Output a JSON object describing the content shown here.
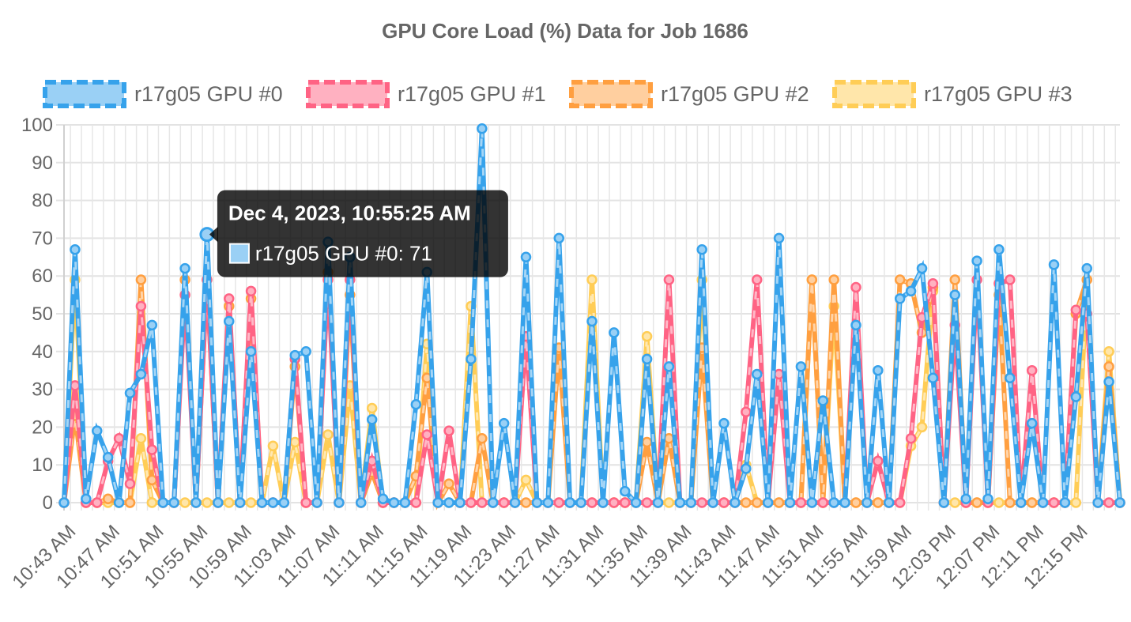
{
  "chart_data": {
    "type": "line",
    "title": "GPU Core Load (%) Data for Job 1686",
    "ylim": [
      0,
      100
    ],
    "yticks": [
      "0",
      "10",
      "20",
      "30",
      "40",
      "50",
      "60",
      "70",
      "80",
      "90",
      "100"
    ],
    "x_tick_labels": [
      "10:43 AM",
      "10:47 AM",
      "10:51 AM",
      "10:55 AM",
      "10:59 AM",
      "11:03 AM",
      "11:07 AM",
      "11:11 AM",
      "11:15 AM",
      "11:19 AM",
      "11:23 AM",
      "11:27 AM",
      "11:31 AM",
      "11:35 AM",
      "11:39 AM",
      "11:43 AM",
      "11:47 AM",
      "11:51 AM",
      "11:55 AM",
      "11:59 AM",
      "12:03 PM",
      "12:07 PM",
      "12:11 PM",
      "12:15 PM"
    ],
    "x_start": "10:42:25 AM",
    "x_end": "12:19:25 PM",
    "sample_interval_seconds": 60,
    "grid": true,
    "legend_position": "top",
    "series": [
      {
        "name": "r17g05 GPU #0",
        "color": "#36a2eb",
        "fill": "#9ad0f5",
        "values": [
          0,
          67,
          1,
          19,
          12,
          0,
          29,
          34,
          47,
          0,
          0,
          62,
          0,
          71,
          0,
          48,
          0,
          40,
          0,
          0,
          0,
          39,
          40,
          0,
          69,
          0,
          65,
          0,
          22,
          1,
          0,
          0,
          26,
          61,
          0,
          0,
          0,
          38,
          99,
          0,
          21,
          0,
          65,
          0,
          0,
          70,
          0,
          0,
          48,
          0,
          45,
          3,
          0,
          38,
          0,
          36,
          0,
          0,
          67,
          0,
          21,
          0,
          9,
          34,
          0,
          70,
          0,
          36,
          0,
          27,
          0,
          0,
          47,
          0,
          35,
          0,
          54,
          56,
          62,
          33,
          0,
          55,
          1,
          64,
          1,
          67,
          33,
          0,
          21,
          0,
          63,
          0,
          28,
          62,
          0,
          32,
          0
        ]
      },
      {
        "name": "r17g05 GPU #1",
        "color": "#ff6384",
        "fill": "#ffb1c1",
        "values": [
          0,
          31,
          0,
          0,
          11,
          17,
          5,
          52,
          14,
          0,
          0,
          55,
          0,
          59,
          0,
          54,
          0,
          56,
          0,
          0,
          0,
          38,
          0,
          0,
          59,
          0,
          59,
          0,
          11,
          0,
          0,
          0,
          0,
          18,
          0,
          19,
          0,
          0,
          0,
          0,
          0,
          0,
          44,
          0,
          0,
          0,
          0,
          0,
          0,
          0,
          0,
          0,
          0,
          0,
          0,
          59,
          0,
          0,
          0,
          0,
          0,
          0,
          24,
          59,
          0,
          34,
          0,
          0,
          0,
          0,
          0,
          0,
          57,
          0,
          11,
          0,
          0,
          17,
          49,
          58,
          0,
          47,
          0,
          59,
          0,
          58,
          59,
          0,
          35,
          0,
          0,
          0,
          51,
          50,
          0,
          0,
          0
        ]
      },
      {
        "name": "r17g05 GPU #2",
        "color": "#ff9f40",
        "fill": "#ffcf9f",
        "values": [
          0,
          23,
          0,
          0,
          1,
          0,
          0,
          59,
          6,
          0,
          0,
          59,
          0,
          59,
          0,
          52,
          0,
          54,
          0,
          0,
          0,
          36,
          0,
          0,
          61,
          0,
          55,
          0,
          8,
          0,
          0,
          0,
          7,
          33,
          0,
          5,
          0,
          0,
          17,
          0,
          0,
          0,
          0,
          0,
          0,
          41,
          0,
          0,
          0,
          0,
          0,
          0,
          0,
          16,
          0,
          17,
          0,
          0,
          41,
          0,
          0,
          0,
          0,
          0,
          0,
          0,
          0,
          0,
          59,
          0,
          59,
          0,
          0,
          0,
          0,
          0,
          59,
          58,
          45,
          57,
          0,
          59,
          0,
          0,
          0,
          55,
          0,
          0,
          0,
          0,
          0,
          0,
          50,
          59,
          0,
          36,
          0
        ]
      },
      {
        "name": "r17g05 GPU #3",
        "color": "#ffcd56",
        "fill": "#ffe6aa",
        "values": [
          0,
          59,
          0,
          0,
          0,
          0,
          0,
          17,
          0,
          0,
          0,
          0,
          0,
          0,
          0,
          0,
          0,
          0,
          0,
          15,
          0,
          16,
          0,
          0,
          18,
          0,
          31,
          0,
          25,
          0,
          0,
          0,
          0,
          42,
          0,
          0,
          0,
          52,
          0,
          0,
          0,
          0,
          6,
          0,
          0,
          0,
          0,
          0,
          59,
          0,
          0,
          0,
          0,
          44,
          0,
          0,
          0,
          0,
          59,
          0,
          0,
          0,
          10,
          0,
          0,
          0,
          0,
          0,
          59,
          0,
          52,
          0,
          0,
          0,
          0,
          0,
          0,
          15,
          20,
          56,
          0,
          0,
          0,
          0,
          0,
          0,
          0,
          0,
          0,
          0,
          0,
          0,
          0,
          59,
          0,
          40,
          0
        ]
      }
    ],
    "tooltip": {
      "title": "Dec 4, 2023, 10:55:25 AM",
      "label": "r17g05 GPU #0: 71",
      "series_index": 0,
      "point_index": 13
    }
  }
}
